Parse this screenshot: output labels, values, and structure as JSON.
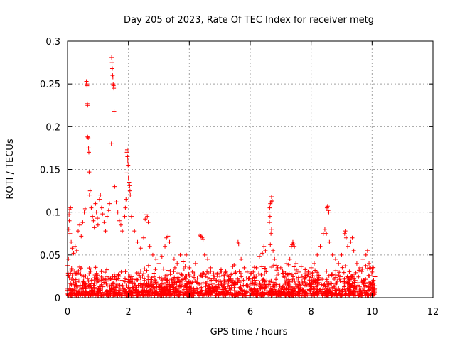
{
  "chart_data": {
    "type": "scatter",
    "title": "Day 205 of 2023, Rate Of TEC Index for receiver metg",
    "xlabel": "GPS time / hours",
    "ylabel": "ROTI / TECUs",
    "xlim": [
      0,
      12
    ],
    "ylim": [
      0,
      0.3
    ],
    "x_ticks": [
      0,
      2,
      4,
      6,
      8,
      10,
      12
    ],
    "y_ticks": [
      0,
      0.05,
      0.1,
      0.15,
      0.2,
      0.25,
      0.3
    ],
    "x_tick_labels": [
      "0",
      "2",
      "4",
      "6",
      "8",
      "10",
      "12"
    ],
    "y_tick_labels": [
      "0",
      "0.05",
      "0.1",
      "0.15",
      "0.2",
      "0.25",
      "0.3"
    ],
    "grid": true,
    "marker": "+",
    "color": "#ff0000",
    "background_band": {
      "x_range": [
        0,
        10.1
      ],
      "y_mean": 0.012,
      "density_per_hour": 170
    },
    "series": [
      {
        "name": "ROTI",
        "points": [
          [
            0.05,
            0.097
          ],
          [
            0.07,
            0.103
          ],
          [
            0.1,
            0.105
          ],
          [
            0.06,
            0.09
          ],
          [
            0.04,
            0.08
          ],
          [
            0.08,
            0.075
          ],
          [
            0.12,
            0.065
          ],
          [
            0.15,
            0.058
          ],
          [
            0.2,
            0.052
          ],
          [
            0.03,
            0.045
          ],
          [
            0.25,
            0.06
          ],
          [
            0.3,
            0.055
          ],
          [
            0.35,
            0.078
          ],
          [
            0.4,
            0.085
          ],
          [
            0.45,
            0.072
          ],
          [
            0.5,
            0.088
          ],
          [
            0.55,
            0.1
          ],
          [
            0.58,
            0.104
          ],
          [
            0.62,
            0.253
          ],
          [
            0.63,
            0.25
          ],
          [
            0.64,
            0.248
          ],
          [
            0.65,
            0.227
          ],
          [
            0.66,
            0.225
          ],
          [
            0.66,
            0.188
          ],
          [
            0.68,
            0.187
          ],
          [
            0.69,
            0.175
          ],
          [
            0.7,
            0.17
          ],
          [
            0.71,
            0.147
          ],
          [
            0.72,
            0.12
          ],
          [
            0.74,
            0.125
          ],
          [
            0.78,
            0.105
          ],
          [
            0.82,
            0.095
          ],
          [
            0.85,
            0.09
          ],
          [
            0.88,
            0.082
          ],
          [
            0.92,
            0.11
          ],
          [
            0.95,
            0.1
          ],
          [
            0.98,
            0.093
          ],
          [
            1.0,
            0.085
          ],
          [
            1.05,
            0.115
          ],
          [
            1.08,
            0.12
          ],
          [
            1.12,
            0.105
          ],
          [
            1.15,
            0.098
          ],
          [
            1.2,
            0.088
          ],
          [
            1.25,
            0.078
          ],
          [
            1.3,
            0.095
          ],
          [
            1.35,
            0.102
          ],
          [
            1.38,
            0.11
          ],
          [
            1.45,
            0.281
          ],
          [
            1.46,
            0.275
          ],
          [
            1.47,
            0.268
          ],
          [
            1.48,
            0.26
          ],
          [
            1.49,
            0.258
          ],
          [
            1.5,
            0.25
          ],
          [
            1.51,
            0.248
          ],
          [
            1.52,
            0.245
          ],
          [
            1.53,
            0.218
          ],
          [
            1.44,
            0.18
          ],
          [
            1.55,
            0.13
          ],
          [
            1.6,
            0.112
          ],
          [
            1.65,
            0.1
          ],
          [
            1.7,
            0.09
          ],
          [
            1.75,
            0.085
          ],
          [
            1.8,
            0.078
          ],
          [
            1.95,
            0.17
          ],
          [
            1.96,
            0.173
          ],
          [
            1.97,
            0.165
          ],
          [
            1.98,
            0.16
          ],
          [
            1.99,
            0.155
          ],
          [
            1.95,
            0.146
          ],
          [
            2.0,
            0.14
          ],
          [
            2.02,
            0.135
          ],
          [
            2.04,
            0.131
          ],
          [
            2.05,
            0.125
          ],
          [
            2.06,
            0.12
          ],
          [
            1.92,
            0.115
          ],
          [
            1.9,
            0.105
          ],
          [
            1.88,
            0.095
          ],
          [
            2.1,
            0.095
          ],
          [
            2.2,
            0.078
          ],
          [
            2.3,
            0.065
          ],
          [
            2.4,
            0.058
          ],
          [
            2.5,
            0.07
          ],
          [
            2.55,
            0.092
          ],
          [
            2.58,
            0.097
          ],
          [
            2.62,
            0.095
          ],
          [
            2.65,
            0.088
          ],
          [
            2.7,
            0.06
          ],
          [
            2.8,
            0.05
          ],
          [
            2.9,
            0.045
          ],
          [
            3.0,
            0.04
          ],
          [
            3.1,
            0.048
          ],
          [
            3.2,
            0.06
          ],
          [
            3.25,
            0.07
          ],
          [
            3.3,
            0.072
          ],
          [
            3.35,
            0.065
          ],
          [
            3.5,
            0.045
          ],
          [
            3.6,
            0.04
          ],
          [
            3.7,
            0.05
          ],
          [
            3.8,
            0.042
          ],
          [
            3.9,
            0.05
          ],
          [
            4.0,
            0.035
          ],
          [
            4.1,
            0.03
          ],
          [
            4.2,
            0.04
          ],
          [
            4.35,
            0.073
          ],
          [
            4.38,
            0.072
          ],
          [
            4.42,
            0.07
          ],
          [
            4.45,
            0.068
          ],
          [
            4.5,
            0.05
          ],
          [
            4.6,
            0.045
          ],
          [
            4.7,
            0.035
          ],
          [
            4.8,
            0.028
          ],
          [
            5.0,
            0.025
          ],
          [
            5.2,
            0.03
          ],
          [
            5.4,
            0.028
          ],
          [
            5.6,
            0.065
          ],
          [
            5.62,
            0.063
          ],
          [
            5.7,
            0.045
          ],
          [
            5.8,
            0.035
          ],
          [
            5.9,
            0.03
          ],
          [
            6.0,
            0.028
          ],
          [
            6.1,
            0.03
          ],
          [
            6.2,
            0.035
          ],
          [
            6.3,
            0.048
          ],
          [
            6.4,
            0.052
          ],
          [
            6.45,
            0.06
          ],
          [
            6.5,
            0.055
          ],
          [
            6.62,
            0.1
          ],
          [
            6.64,
            0.105
          ],
          [
            6.66,
            0.11
          ],
          [
            6.68,
            0.112
          ],
          [
            6.7,
            0.118
          ],
          [
            6.72,
            0.113
          ],
          [
            6.65,
            0.095
          ],
          [
            6.63,
            0.088
          ],
          [
            6.7,
            0.08
          ],
          [
            6.68,
            0.075
          ],
          [
            6.66,
            0.062
          ],
          [
            6.75,
            0.055
          ],
          [
            6.8,
            0.045
          ],
          [
            6.9,
            0.035
          ],
          [
            7.0,
            0.035
          ],
          [
            7.1,
            0.03
          ],
          [
            7.2,
            0.04
          ],
          [
            7.3,
            0.045
          ],
          [
            7.35,
            0.06
          ],
          [
            7.38,
            0.062
          ],
          [
            7.4,
            0.065
          ],
          [
            7.42,
            0.063
          ],
          [
            7.45,
            0.06
          ],
          [
            7.5,
            0.04
          ],
          [
            7.6,
            0.03
          ],
          [
            7.7,
            0.025
          ],
          [
            7.8,
            0.028
          ],
          [
            7.9,
            0.03
          ],
          [
            8.0,
            0.035
          ],
          [
            8.1,
            0.04
          ],
          [
            8.2,
            0.05
          ],
          [
            8.3,
            0.06
          ],
          [
            8.4,
            0.075
          ],
          [
            8.45,
            0.08
          ],
          [
            8.5,
            0.075
          ],
          [
            8.52,
            0.105
          ],
          [
            8.54,
            0.107
          ],
          [
            8.56,
            0.102
          ],
          [
            8.58,
            0.1
          ],
          [
            8.6,
            0.065
          ],
          [
            8.7,
            0.05
          ],
          [
            8.8,
            0.045
          ],
          [
            8.9,
            0.04
          ],
          [
            9.0,
            0.05
          ],
          [
            9.1,
            0.075
          ],
          [
            9.12,
            0.078
          ],
          [
            9.15,
            0.07
          ],
          [
            9.2,
            0.06
          ],
          [
            9.3,
            0.065
          ],
          [
            9.35,
            0.07
          ],
          [
            9.4,
            0.055
          ],
          [
            9.5,
            0.04
          ],
          [
            9.6,
            0.035
          ],
          [
            9.7,
            0.045
          ],
          [
            9.8,
            0.05
          ],
          [
            9.85,
            0.055
          ],
          [
            9.9,
            0.04
          ],
          [
            9.95,
            0.035
          ],
          [
            10.0,
            0.03
          ],
          [
            10.05,
            0.02
          ]
        ]
      }
    ]
  }
}
